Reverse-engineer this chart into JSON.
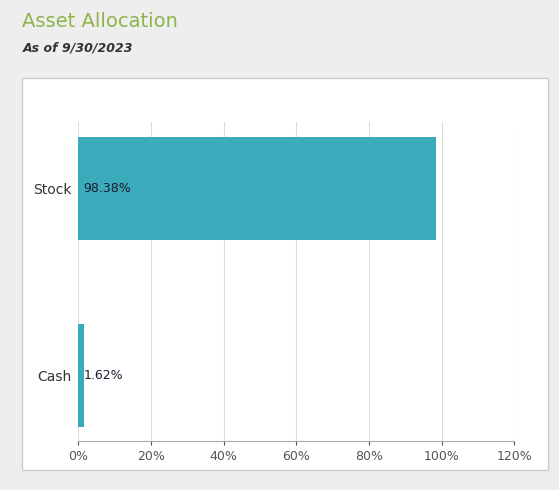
{
  "title": "Asset Allocation",
  "subtitle": "As of 9/30/2023",
  "categories": [
    "Cash",
    "Stock"
  ],
  "values": [
    1.62,
    98.38
  ],
  "bar_color": "#3aabbb",
  "label_color": "#1a1a2e",
  "title_color": "#8db34a",
  "subtitle_color": "#333333",
  "background_color": "#eeeeee",
  "plot_bg_color": "#ffffff",
  "xlim": [
    0,
    120
  ],
  "xticks": [
    0,
    20,
    40,
    60,
    80,
    100,
    120
  ],
  "bar_height": 0.55,
  "value_labels": [
    "1.62%",
    "98.38%"
  ],
  "grid_color": "#dddddd"
}
